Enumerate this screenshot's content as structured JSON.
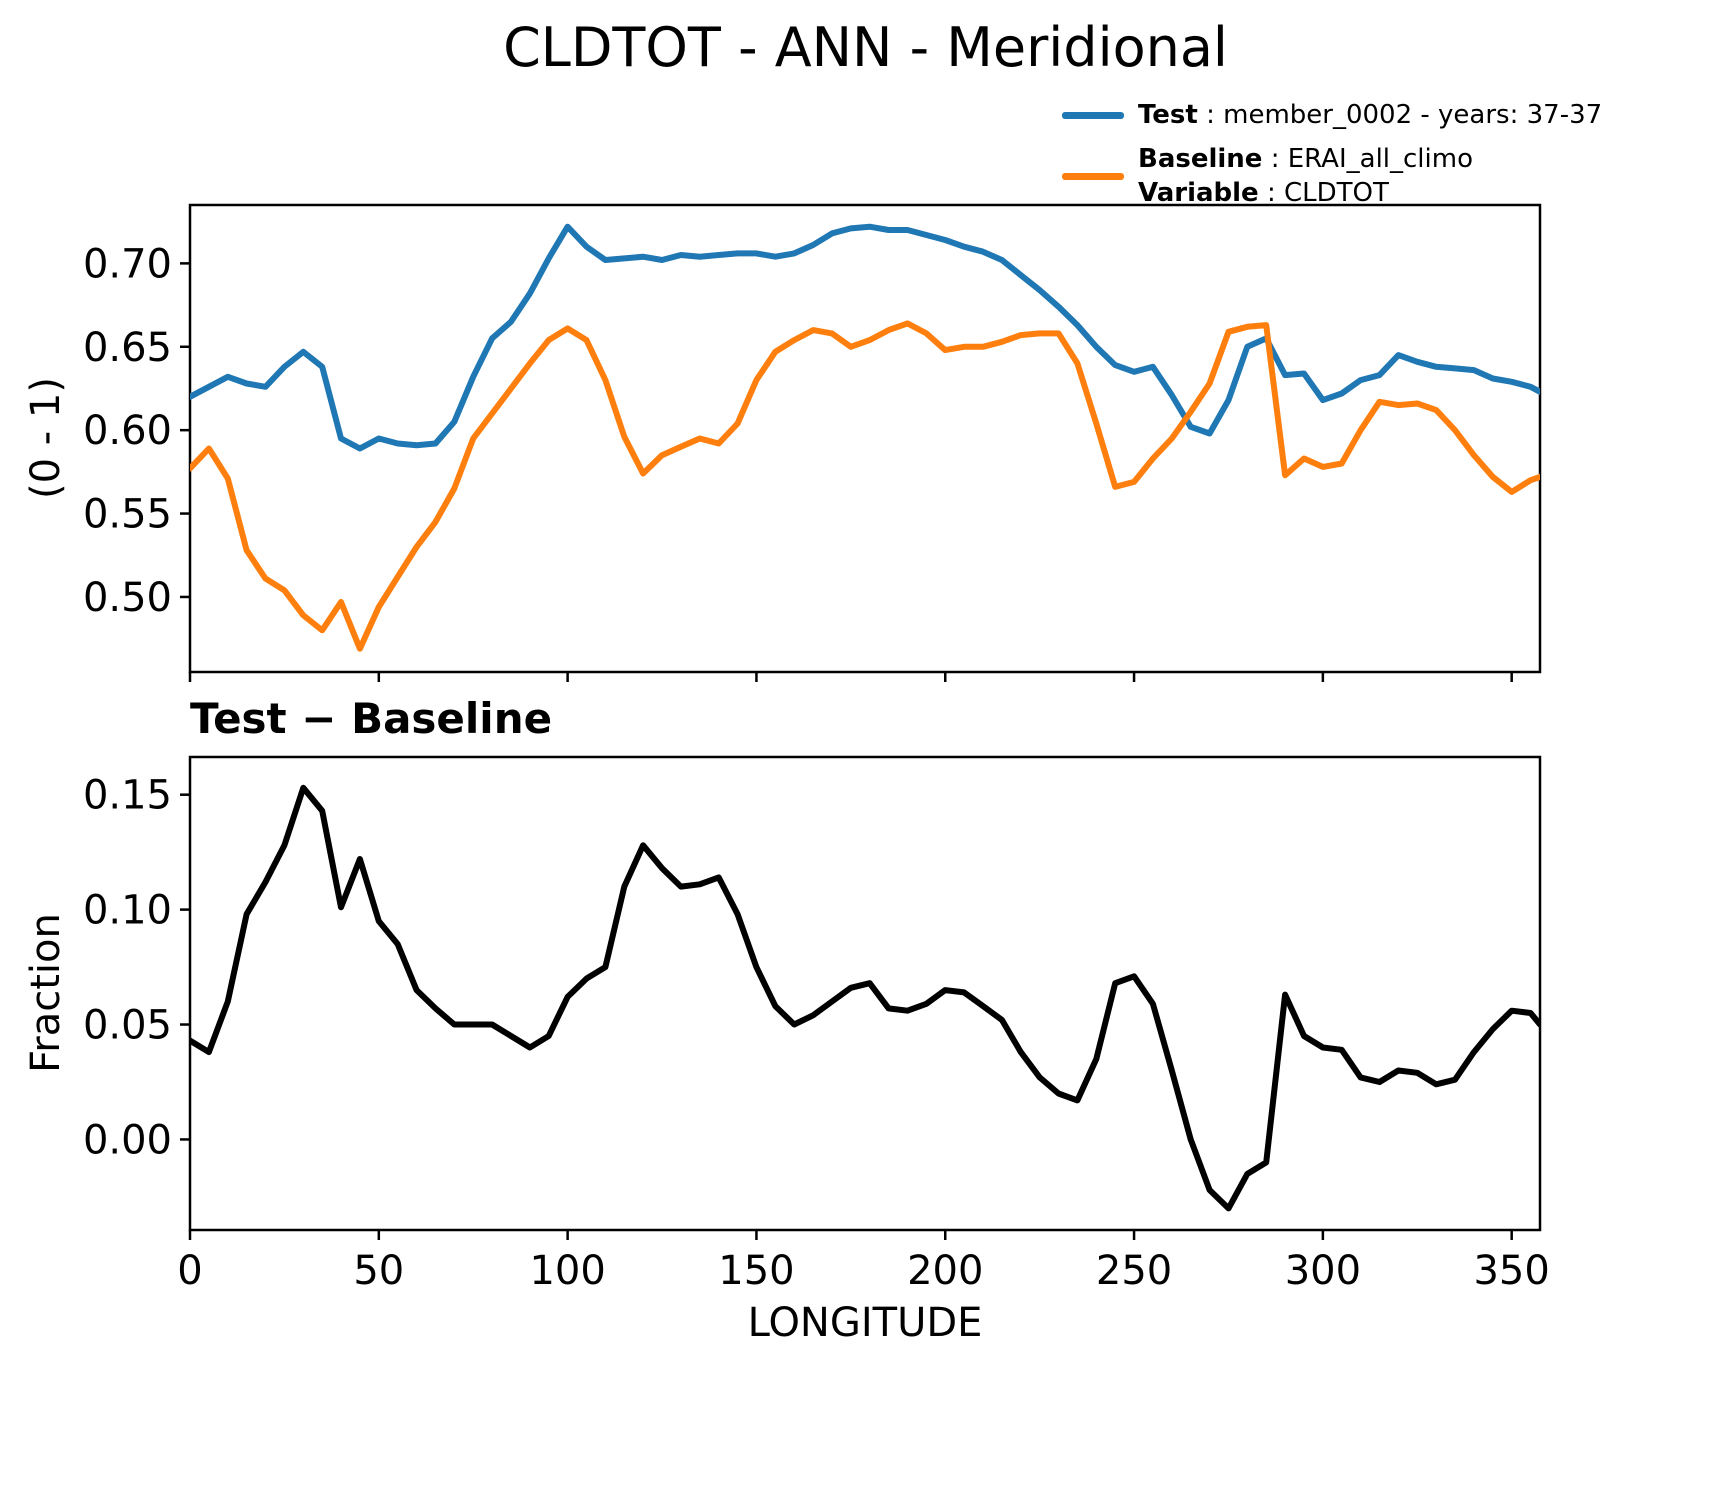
{
  "title": "CLDTOT - ANN - Meridional",
  "legend": {
    "test_label": "Test",
    "test_value": " : member_0002 - years: 37-37",
    "baseline_label": "Baseline",
    "baseline_value": " : ERAI_all_climo",
    "variable_label": "Variable",
    "variable_value": " : CLDTOT"
  },
  "colors": {
    "test": "#1f77b4",
    "baseline": "#ff7f0e",
    "diff": "#000000"
  },
  "chart_data": [
    {
      "type": "line",
      "panel": "top",
      "title": "",
      "ylabel": "(0 - 1)",
      "xlabel": "",
      "xlim": [
        0,
        357.5
      ],
      "ylim": [
        0.455,
        0.735
      ],
      "xticks": [
        0,
        50,
        100,
        150,
        200,
        250,
        300,
        350
      ],
      "show_x_tick_labels": false,
      "yticklabels": [
        "0.50",
        "0.55",
        "0.60",
        "0.65",
        "0.70"
      ],
      "grid": false,
      "legend_position": "outside upper right",
      "x": [
        0,
        5,
        10,
        15,
        20,
        25,
        30,
        35,
        40,
        45,
        50,
        55,
        60,
        65,
        70,
        75,
        80,
        85,
        90,
        95,
        100,
        105,
        110,
        115,
        120,
        125,
        130,
        135,
        140,
        145,
        150,
        155,
        160,
        165,
        170,
        175,
        180,
        185,
        190,
        195,
        200,
        205,
        210,
        215,
        220,
        225,
        230,
        235,
        240,
        245,
        250,
        255,
        260,
        265,
        270,
        275,
        280,
        285,
        290,
        295,
        300,
        305,
        310,
        315,
        320,
        325,
        330,
        335,
        340,
        345,
        350,
        355,
        357.5
      ],
      "series": [
        {
          "name": "Test",
          "color": "#1f77b4",
          "values": [
            0.62,
            0.626,
            0.632,
            0.628,
            0.626,
            0.638,
            0.647,
            0.638,
            0.595,
            0.589,
            0.595,
            0.592,
            0.591,
            0.592,
            0.605,
            0.632,
            0.655,
            0.665,
            0.682,
            0.703,
            0.722,
            0.71,
            0.702,
            0.703,
            0.704,
            0.702,
            0.705,
            0.704,
            0.705,
            0.706,
            0.706,
            0.704,
            0.706,
            0.711,
            0.718,
            0.721,
            0.722,
            0.72,
            0.72,
            0.717,
            0.714,
            0.71,
            0.707,
            0.702,
            0.693,
            0.684,
            0.674,
            0.663,
            0.65,
            0.639,
            0.635,
            0.638,
            0.621,
            0.602,
            0.598,
            0.618,
            0.65,
            0.655,
            0.633,
            0.634,
            0.618,
            0.622,
            0.63,
            0.633,
            0.645,
            0.641,
            0.638,
            0.637,
            0.636,
            0.631,
            0.629,
            0.626,
            0.623
          ]
        },
        {
          "name": "Baseline",
          "color": "#ff7f0e",
          "values": [
            0.577,
            0.589,
            0.571,
            0.528,
            0.511,
            0.504,
            0.489,
            0.48,
            0.497,
            0.469,
            0.494,
            0.512,
            0.53,
            0.545,
            0.565,
            0.595,
            0.61,
            0.625,
            0.64,
            0.654,
            0.661,
            0.654,
            0.63,
            0.596,
            0.574,
            0.585,
            0.59,
            0.595,
            0.592,
            0.604,
            0.63,
            0.647,
            0.654,
            0.66,
            0.658,
            0.65,
            0.654,
            0.66,
            0.664,
            0.658,
            0.648,
            0.65,
            0.65,
            0.653,
            0.657,
            0.658,
            0.658,
            0.64,
            0.604,
            0.566,
            0.569,
            0.583,
            0.595,
            0.611,
            0.628,
            0.659,
            0.662,
            0.663,
            0.573,
            0.583,
            0.578,
            0.58,
            0.6,
            0.617,
            0.615,
            0.616,
            0.612,
            0.6,
            0.585,
            0.572,
            0.563,
            0.57,
            0.572
          ]
        }
      ]
    },
    {
      "type": "line",
      "panel": "bottom",
      "title": "Test − Baseline",
      "ylabel": "Fraction",
      "xlabel": "LONGITUDE",
      "xlim": [
        0,
        357.5
      ],
      "ylim": [
        -0.0394,
        0.1664
      ],
      "xticks": [
        0,
        50,
        100,
        150,
        200,
        250,
        300,
        350
      ],
      "show_x_tick_labels": true,
      "yticklabels": [
        "0.00",
        "0.05",
        "0.10",
        "0.15"
      ],
      "grid": false,
      "x": [
        0,
        5,
        10,
        15,
        20,
        25,
        30,
        35,
        40,
        45,
        50,
        55,
        60,
        65,
        70,
        75,
        80,
        85,
        90,
        95,
        100,
        105,
        110,
        115,
        120,
        125,
        130,
        135,
        140,
        145,
        150,
        155,
        160,
        165,
        170,
        175,
        180,
        185,
        190,
        195,
        200,
        205,
        210,
        215,
        220,
        225,
        230,
        235,
        240,
        245,
        250,
        255,
        260,
        265,
        270,
        275,
        280,
        285,
        290,
        295,
        300,
        305,
        310,
        315,
        320,
        325,
        330,
        335,
        340,
        345,
        350,
        355,
        357.5
      ],
      "series": [
        {
          "name": "Test - Baseline",
          "color": "#000000",
          "values": [
            0.043,
            0.038,
            0.06,
            0.098,
            0.112,
            0.128,
            0.153,
            0.143,
            0.101,
            0.122,
            0.095,
            0.085,
            0.065,
            0.057,
            0.05,
            0.05,
            0.05,
            0.045,
            0.04,
            0.045,
            0.062,
            0.07,
            0.075,
            0.11,
            0.128,
            0.118,
            0.11,
            0.111,
            0.114,
            0.098,
            0.075,
            0.058,
            0.05,
            0.054,
            0.06,
            0.066,
            0.068,
            0.057,
            0.056,
            0.059,
            0.065,
            0.064,
            0.058,
            0.052,
            0.038,
            0.027,
            0.02,
            0.017,
            0.035,
            0.068,
            0.071,
            0.059,
            0.03,
            0.0,
            -0.022,
            -0.03,
            -0.015,
            -0.01,
            0.063,
            0.045,
            0.04,
            0.039,
            0.027,
            0.025,
            0.03,
            0.029,
            0.024,
            0.026,
            0.038,
            0.048,
            0.056,
            0.055,
            0.05
          ]
        }
      ]
    }
  ]
}
